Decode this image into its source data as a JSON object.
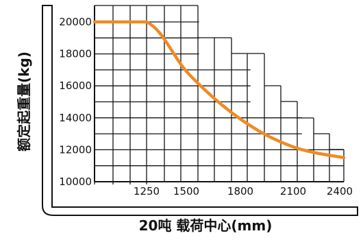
{
  "chart_data": {
    "type": "line",
    "xlabel": "20吨 载荷中心(mm)",
    "ylabel": "额定起重量(kg)",
    "xlim": [
      0,
      2400
    ],
    "ylim": [
      10000,
      20000
    ],
    "x_ticks": [
      "1250",
      "1500",
      "1800",
      "2100",
      "2400"
    ],
    "y_ticks": [
      "20000",
      "18000",
      "16000",
      "14000",
      "12000",
      "10000"
    ],
    "series": [
      {
        "color": "#f08a24",
        "x": [
          0,
          1250,
          1500,
          1800,
          2100,
          2400
        ],
        "y": [
          20000,
          20000,
          16700,
          13900,
          12200,
          11500
        ]
      }
    ],
    "grid": true,
    "legend": "none"
  }
}
